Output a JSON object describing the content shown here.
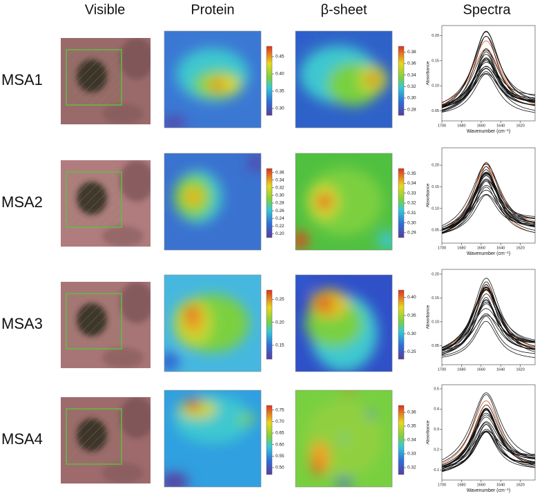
{
  "headers": [
    "Visible",
    "Protein",
    "β-sheet",
    "Spectra"
  ],
  "rows": [
    {
      "label": "MSA1",
      "protein": {
        "range": [
          0.28,
          0.48
        ],
        "ticks": [
          0.45,
          {
            "value": 0.4,
            "label": "0.40"
          },
          0.35,
          {
            "value": 0.3,
            "label": "0.30"
          }
        ]
      },
      "beta": {
        "range": [
          0.27,
          0.39
        ],
        "ticks": [
          0.38,
          0.36,
          0.34,
          0.32,
          {
            "value": 0.3,
            "label": "0.30"
          },
          0.28
        ]
      },
      "spectra": {
        "xlim": [
          1700,
          1605
        ],
        "xticks": [
          1700,
          1680,
          1660,
          1640,
          1620
        ],
        "ylim": [
          0.03,
          0.22
        ],
        "yticks": [
          0.05,
          {
            "value": 0.1,
            "label": "0.10"
          },
          0.15,
          {
            "value": 0.2,
            "label": "0.20"
          }
        ],
        "xlabel": "Wavenumber (cm⁻¹)",
        "ylabel": "Absorbance"
      }
    },
    {
      "label": "MSA2",
      "protein": {
        "range": [
          0.19,
          0.37
        ],
        "ticks": [
          0.36,
          0.34,
          0.32,
          {
            "value": 0.3,
            "label": "0.30"
          },
          0.28,
          0.26,
          0.24,
          0.22,
          {
            "value": 0.2,
            "label": "0.20"
          }
        ]
      },
      "beta": {
        "range": [
          0.285,
          0.355
        ],
        "ticks": [
          0.35,
          0.34,
          0.33,
          0.32,
          0.31,
          {
            "value": 0.3,
            "label": "0.30"
          },
          0.29
        ]
      },
      "spectra": {
        "xlim": [
          1700,
          1605
        ],
        "xticks": [
          1700,
          1680,
          1660,
          1640,
          1620
        ],
        "ylim": [
          0.02,
          0.24
        ],
        "yticks": [
          0.05,
          {
            "value": 0.1,
            "label": "0.10"
          },
          0.15,
          {
            "value": 0.2,
            "label": "0.20"
          }
        ],
        "xlabel": "Wavenumber (cm⁻¹)",
        "ylabel": "Absorbance"
      }
    },
    {
      "label": "MSA3",
      "protein": {
        "range": [
          0.12,
          0.27
        ],
        "ticks": [
          0.25,
          {
            "value": 0.2,
            "label": "0.20"
          },
          0.15
        ]
      },
      "beta": {
        "range": [
          0.23,
          0.42
        ],
        "ticks": [
          {
            "value": 0.4,
            "label": "0.40"
          },
          0.35,
          {
            "value": 0.3,
            "label": "0.30"
          },
          0.25
        ]
      },
      "spectra": {
        "xlim": [
          1700,
          1605
        ],
        "xticks": [
          1700,
          1680,
          1660,
          1640,
          1620
        ],
        "ylim": [
          0.01,
          0.21
        ],
        "yticks": [
          0.05,
          {
            "value": 0.1,
            "label": "0.10"
          },
          0.15,
          {
            "value": 0.2,
            "label": "0.20"
          }
        ],
        "ylabel": "Absorbance"
      }
    },
    {
      "label": "MSA4",
      "protein": {
        "range": [
          0.47,
          0.77
        ],
        "ticks": [
          0.75,
          {
            "value": 0.7,
            "label": "0.70"
          },
          0.65,
          {
            "value": 0.6,
            "label": "0.60"
          },
          0.55,
          {
            "value": 0.5,
            "label": "0.50"
          }
        ]
      },
      "beta": {
        "range": [
          0.315,
          0.365
        ],
        "ticks": [
          0.36,
          0.35,
          0.34,
          0.33,
          0.32
        ]
      },
      "spectra": {
        "xlim": [
          1700,
          1605
        ],
        "xticks": [
          1700,
          1680,
          1660,
          1640,
          1620
        ],
        "ylim": [
          0.05,
          0.52
        ],
        "yticks": [
          0.1,
          0.2,
          0.3,
          0.4,
          0.5
        ],
        "xlabel": "Wavenumber (cm⁻¹)",
        "ylabel": "Absorbance"
      }
    }
  ]
}
